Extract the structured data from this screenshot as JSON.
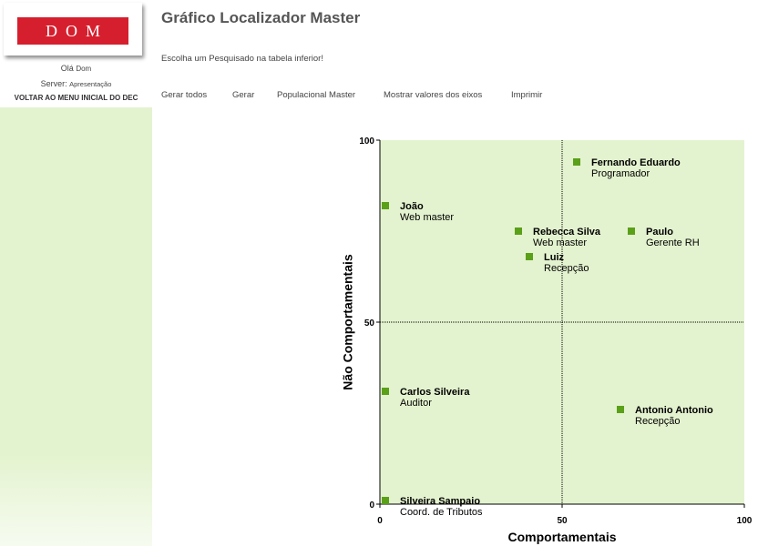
{
  "sidebar": {
    "logo_text": "DOM",
    "greeting_prefix": "Olá",
    "greeting_user": "Dom",
    "server_prefix": "Server:",
    "server_name": "Apresentação",
    "back_link": "VOLTAR AO MENU INICIAL DO DEC"
  },
  "header": {
    "title": "Gráfico Localizador Master",
    "subtitle": "Escolha um Pesquisado na tabela inferior!"
  },
  "menu": {
    "items": [
      "Gerar todos",
      "Gerar",
      "Populacional Master",
      "Mostrar valores dos eixos",
      "Imprimir"
    ]
  },
  "colors": {
    "plot_bg": "#e4f3cf",
    "point": "#5aa019",
    "logo_red": "#d61f2e"
  },
  "chart_data": {
    "type": "scatter",
    "xlabel": "Comportamentais",
    "ylabel": "Não Comportamentais",
    "xlim": [
      0,
      100
    ],
    "ylim": [
      0,
      100
    ],
    "xticks": [
      "0",
      "50",
      "100"
    ],
    "yticks": [
      "0",
      "50",
      "100"
    ],
    "grid": "dotted lines at 50 (quadrants)",
    "points": [
      {
        "name": "Fernando Eduardo",
        "role": "Programador",
        "x": 54,
        "y": 94
      },
      {
        "name": "João",
        "role": "Web master",
        "x": 1.5,
        "y": 82
      },
      {
        "name": "Rebecca Silva",
        "role": "Web master",
        "x": 38,
        "y": 75
      },
      {
        "name": "Paulo",
        "role": "Gerente RH",
        "x": 69,
        "y": 75
      },
      {
        "name": "Luiz",
        "role": "Recepção",
        "x": 41,
        "y": 68
      },
      {
        "name": "Carlos Silveira",
        "role": "Auditor",
        "x": 1.5,
        "y": 31
      },
      {
        "name": "Antonio Antonio",
        "role": "Recepção",
        "x": 66,
        "y": 26
      },
      {
        "name": "Silveira Sampaio",
        "role": "Coord. de Tributos",
        "x": 1.5,
        "y": 1
      }
    ]
  }
}
